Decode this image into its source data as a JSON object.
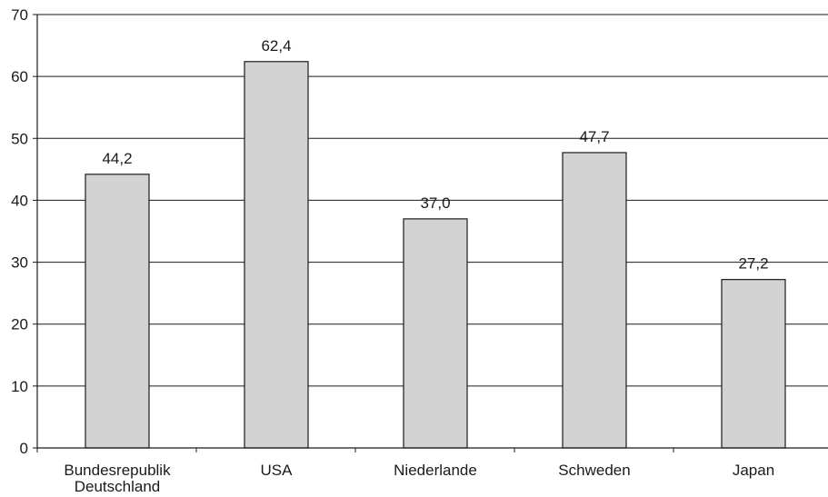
{
  "chart_data": {
    "type": "bar",
    "title": "",
    "xlabel": "",
    "ylabel": "",
    "categories": [
      [
        "Bundesrepublik",
        "Deutschland"
      ],
      [
        "USA"
      ],
      [
        "Niederlande"
      ],
      [
        "Schweden"
      ],
      [
        "Japan"
      ]
    ],
    "values": [
      44.2,
      62.4,
      37.0,
      47.7,
      27.2
    ],
    "value_labels": [
      "44,2",
      "62,4",
      "37,0",
      "47,7",
      "27,2"
    ],
    "ylim": [
      0,
      70
    ],
    "yticks": [
      0,
      10,
      20,
      30,
      40,
      50,
      60,
      70
    ],
    "grid": true,
    "bar_fill": "#d3d3d3",
    "bar_stroke": "#1a1a1a"
  }
}
